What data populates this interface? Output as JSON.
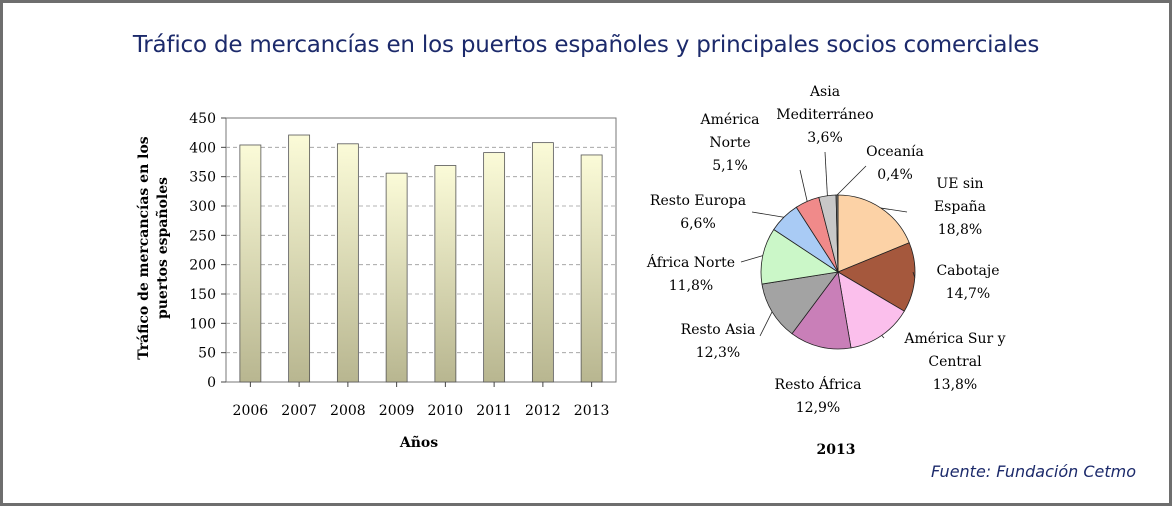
{
  "header": {
    "title": "Tráfico de mercancías en los puertos españoles y principales socios comerciales"
  },
  "footer": {
    "source": "Fuente: Fundación Cetmo"
  },
  "chart_data": [
    {
      "type": "bar",
      "title": "",
      "xlabel": "Años",
      "ylabel_lines": [
        "Tráfico de mercancías en los",
        "puertos españoles"
      ],
      "ylim": [
        0,
        450
      ],
      "yticks": [
        0,
        50,
        100,
        150,
        200,
        250,
        300,
        350,
        400,
        450
      ],
      "categories": [
        "2006",
        "2007",
        "2008",
        "2009",
        "2010",
        "2011",
        "2012",
        "2013"
      ],
      "values": [
        404,
        421,
        406,
        356,
        369,
        391,
        408,
        387
      ],
      "grid": "dashed horizontal",
      "colors": {
        "bar_top": "#fbfbd8",
        "bar_bottom": "#b8b690",
        "bar_stroke": "#555555"
      }
    },
    {
      "type": "pie",
      "xlabel": "2013",
      "slices": [
        {
          "label_lines": [
            "UE sin",
            "España"
          ],
          "pct_label": "18,8%",
          "value": 18.8,
          "color": "#fcd2a6"
        },
        {
          "label_lines": [
            "Cabotaje"
          ],
          "pct_label": "14,7%",
          "value": 14.7,
          "color": "#a5583d"
        },
        {
          "label_lines": [
            "América Sur y",
            "Central"
          ],
          "pct_label": "13,8%",
          "value": 13.8,
          "color": "#fbbfec"
        },
        {
          "label_lines": [
            "Resto África"
          ],
          "pct_label": "12,9%",
          "value": 12.9,
          "color": "#c97fb8"
        },
        {
          "label_lines": [
            "Resto Asia"
          ],
          "pct_label": "12,3%",
          "value": 12.3,
          "color": "#a3a3a3"
        },
        {
          "label_lines": [
            "África Norte"
          ],
          "pct_label": "11,8%",
          "value": 11.8,
          "color": "#cbf7c8"
        },
        {
          "label_lines": [
            "Resto Europa"
          ],
          "pct_label": "6,6%",
          "value": 6.6,
          "color": "#a9cbf5"
        },
        {
          "label_lines": [
            "América",
            "Norte"
          ],
          "pct_label": "5,1%",
          "value": 5.1,
          "color": "#f08a8a"
        },
        {
          "label_lines": [
            "Asia",
            "Mediterráneo"
          ],
          "pct_label": "3,6%",
          "value": 3.6,
          "color": "#c8c8c8"
        },
        {
          "label_lines": [
            "Oceanía"
          ],
          "pct_label": "0,4%",
          "value": 0.4,
          "color": "#7a7a7a"
        }
      ]
    }
  ]
}
